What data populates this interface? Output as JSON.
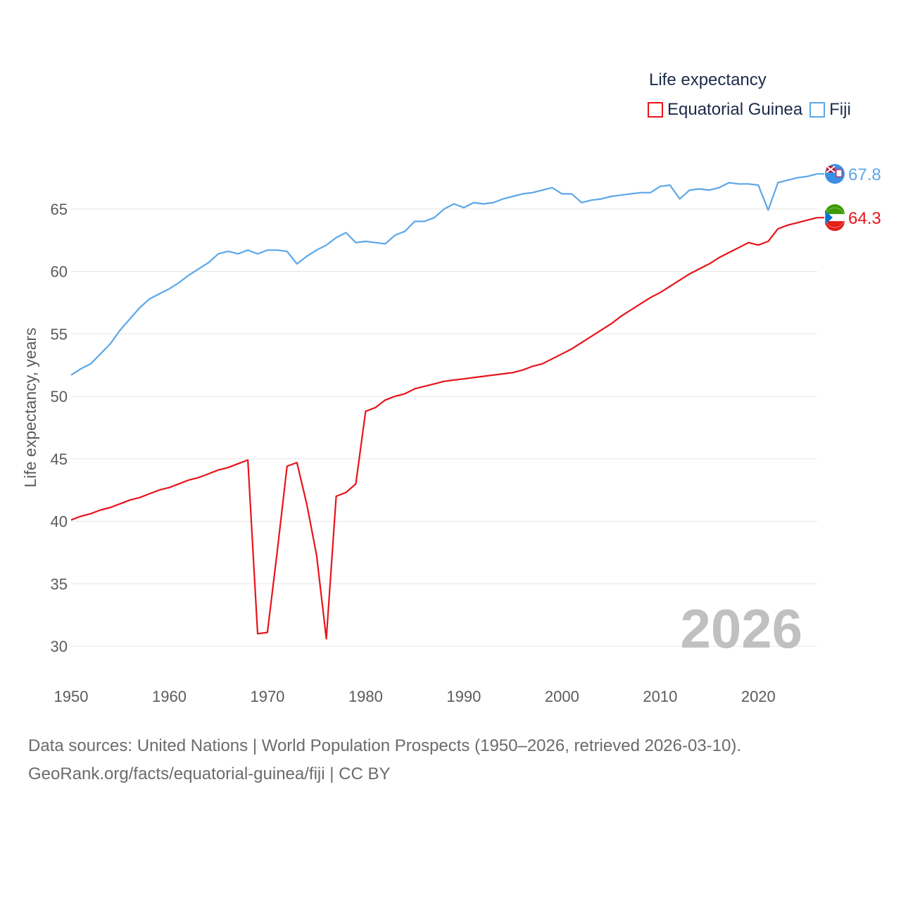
{
  "chart_data": {
    "type": "line",
    "title": "",
    "legend_title": "Life expectancy",
    "legend_placement": "top-right",
    "xlabel": "",
    "ylabel": "Life expectancy, years",
    "xlim": [
      1950,
      2026
    ],
    "ylim": [
      27,
      69
    ],
    "grid": true,
    "x_ticks": [
      "1950",
      "1960",
      "1970",
      "1980",
      "1990",
      "2000",
      "2010",
      "2020"
    ],
    "y_ticks": [
      "30",
      "35",
      "40",
      "45",
      "50",
      "55",
      "60",
      "65"
    ],
    "year_label": "2026",
    "series": [
      {
        "name": "Equatorial Guinea",
        "color": "#e8131a",
        "end_label": "64.3",
        "flag_icon": "equatorial-guinea-flag-icon",
        "x": [
          1950,
          1951,
          1952,
          1953,
          1954,
          1955,
          1956,
          1957,
          1958,
          1959,
          1960,
          1961,
          1962,
          1963,
          1964,
          1965,
          1966,
          1967,
          1968,
          1969,
          1970,
          1971,
          1972,
          1973,
          1974,
          1975,
          1976,
          1977,
          1978,
          1979,
          1980,
          1981,
          1982,
          1983,
          1984,
          1985,
          1986,
          1987,
          1988,
          1989,
          1990,
          1991,
          1992,
          1993,
          1994,
          1995,
          1996,
          1997,
          1998,
          1999,
          2000,
          2001,
          2002,
          2003,
          2004,
          2005,
          2006,
          2007,
          2008,
          2009,
          2010,
          2011,
          2012,
          2013,
          2014,
          2015,
          2016,
          2017,
          2018,
          2019,
          2020,
          2021,
          2022,
          2023,
          2024,
          2025,
          2026
        ],
        "values": [
          40.1,
          40.4,
          40.6,
          40.9,
          41.1,
          41.4,
          41.7,
          41.9,
          42.2,
          42.5,
          42.7,
          43.0,
          43.3,
          43.5,
          43.8,
          44.1,
          44.3,
          44.6,
          44.9,
          31.0,
          31.1,
          37.6,
          44.4,
          44.7,
          41.4,
          37.3,
          30.6,
          42.0,
          42.3,
          43.0,
          48.8,
          49.1,
          49.7,
          50.0,
          50.2,
          50.6,
          50.8,
          51.0,
          51.2,
          51.3,
          51.4,
          51.5,
          51.6,
          51.7,
          51.8,
          51.9,
          52.1,
          52.4,
          52.6,
          53.0,
          53.4,
          53.8,
          54.3,
          54.8,
          55.3,
          55.8,
          56.4,
          56.9,
          57.4,
          57.9,
          58.3,
          58.8,
          59.3,
          59.8,
          60.2,
          60.6,
          61.1,
          61.5,
          61.9,
          62.3,
          62.1,
          62.4,
          63.4,
          63.7,
          63.9,
          64.1,
          64.3
        ]
      },
      {
        "name": "Fiji",
        "color": "#5ca7e8",
        "end_label": "67.8",
        "flag_icon": "fiji-flag-icon",
        "x": [
          1950,
          1951,
          1952,
          1953,
          1954,
          1955,
          1956,
          1957,
          1958,
          1959,
          1960,
          1961,
          1962,
          1963,
          1964,
          1965,
          1966,
          1967,
          1968,
          1969,
          1970,
          1971,
          1972,
          1973,
          1974,
          1975,
          1976,
          1977,
          1978,
          1979,
          1980,
          1981,
          1982,
          1983,
          1984,
          1985,
          1986,
          1987,
          1988,
          1989,
          1990,
          1991,
          1992,
          1993,
          1994,
          1995,
          1996,
          1997,
          1998,
          1999,
          2000,
          2001,
          2002,
          2003,
          2004,
          2005,
          2006,
          2007,
          2008,
          2009,
          2010,
          2011,
          2012,
          2013,
          2014,
          2015,
          2016,
          2017,
          2018,
          2019,
          2020,
          2021,
          2022,
          2023,
          2024,
          2025,
          2026
        ],
        "values": [
          51.7,
          52.2,
          52.6,
          53.4,
          54.2,
          55.3,
          56.2,
          57.1,
          57.8,
          58.2,
          58.6,
          59.1,
          59.7,
          60.2,
          60.7,
          61.4,
          61.6,
          61.4,
          61.7,
          61.4,
          61.7,
          61.7,
          61.6,
          60.6,
          61.2,
          61.7,
          62.1,
          62.7,
          63.1,
          62.3,
          62.4,
          62.3,
          62.2,
          62.9,
          63.2,
          64.0,
          64.0,
          64.3,
          65.0,
          65.4,
          65.1,
          65.5,
          65.4,
          65.5,
          65.8,
          66.0,
          66.2,
          66.3,
          66.5,
          66.7,
          66.2,
          66.2,
          65.5,
          65.7,
          65.8,
          66.0,
          66.1,
          66.2,
          66.3,
          66.3,
          66.8,
          66.9,
          65.8,
          66.5,
          66.6,
          66.5,
          66.7,
          67.1,
          67.0,
          67.0,
          66.9,
          64.9,
          67.1,
          67.3,
          67.5,
          67.6,
          67.8
        ]
      }
    ]
  },
  "footer": {
    "line1": "Data sources: United Nations | World Population Prospects (1950–2026, retrieved 2026-03-10).",
    "line2": "GeoRank.org/facts/equatorial-guinea/fiji | CC BY"
  }
}
